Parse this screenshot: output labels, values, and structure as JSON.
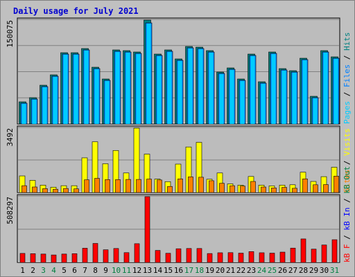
{
  "title": "Daily usage for July 2021",
  "colors": {
    "background": "#c0c0c0",
    "plot": "#bcbcbc",
    "grid": "#808080",
    "pages": "#00ccff",
    "files": "#0080ff",
    "hits": "#008080",
    "visits": "#ffff00",
    "sites": "#ff8000",
    "kb_in": "#008040",
    "kb_out": "#0000ff",
    "kb_f": "#ff0000",
    "weekend": "#008040",
    "weekday": "#000000",
    "title": "#0000d0"
  },
  "chart_data": [
    {
      "type": "bar",
      "panel": "hits-files-pages",
      "scale_label": "150075",
      "ylim": [
        0,
        150075
      ],
      "grid": true,
      "legend": {
        "position": "right",
        "items": [
          {
            "text": "Pages",
            "color": "#00ccff"
          },
          {
            "text": "Files",
            "color": "#0080ff"
          },
          {
            "text": "Hits",
            "color": "#008080"
          }
        ],
        "separators": "/"
      },
      "categories": [
        1,
        2,
        3,
        4,
        5,
        6,
        7,
        8,
        9,
        10,
        11,
        12,
        13,
        14,
        15,
        16,
        17,
        18,
        19,
        20,
        21,
        22,
        23,
        24,
        25,
        26,
        27,
        28,
        29,
        30,
        31
      ],
      "series": [
        {
          "name": "Hits",
          "values": [
            32000,
            38000,
            56000,
            71000,
            103000,
            103000,
            109000,
            82000,
            65000,
            107000,
            106000,
            104000,
            150075,
            101000,
            107000,
            94000,
            112000,
            111000,
            106000,
            75000,
            81000,
            65000,
            101000,
            61000,
            104000,
            80000,
            77000,
            95000,
            40000,
            106000,
            97000
          ]
        },
        {
          "name": "Files",
          "values": [
            30000,
            36000,
            54000,
            69000,
            101000,
            101000,
            107000,
            80000,
            63000,
            105000,
            104000,
            102000,
            146000,
            99000,
            105000,
            92000,
            110000,
            109000,
            104000,
            73000,
            79000,
            63000,
            99000,
            59000,
            102000,
            78000,
            75000,
            93000,
            38000,
            104000,
            95000
          ]
        }
      ]
    },
    {
      "type": "bar",
      "panel": "visits-sites",
      "scale_label": "3492",
      "ylim": [
        0,
        3492
      ],
      "grid": true,
      "legend": {
        "position": "right",
        "items": [
          {
            "text": "Sites",
            "color": "#ff8000"
          },
          {
            "text": "Visits",
            "color": "#ffff00"
          }
        ],
        "separators": "/"
      },
      "categories": [
        1,
        2,
        3,
        4,
        5,
        6,
        7,
        8,
        9,
        10,
        11,
        12,
        13,
        14,
        15,
        16,
        17,
        18,
        19,
        20,
        21,
        22,
        23,
        24,
        25,
        26,
        27,
        28,
        29,
        30,
        31
      ],
      "series": [
        {
          "name": "Visits",
          "values": [
            900,
            660,
            400,
            290,
            370,
            370,
            1880,
            2750,
            1560,
            2280,
            1060,
            3492,
            2080,
            730,
            590,
            1540,
            2470,
            2720,
            720,
            1060,
            470,
            400,
            870,
            400,
            360,
            400,
            420,
            1100,
            600,
            860,
            1370
          ]
        },
        {
          "name": "Sites",
          "values": [
            370,
            300,
            210,
            180,
            220,
            200,
            690,
            770,
            700,
            700,
            710,
            710,
            730,
            680,
            330,
            740,
            850,
            830,
            640,
            500,
            370,
            350,
            600,
            300,
            250,
            280,
            230,
            740,
            420,
            430,
            890
          ]
        }
      ]
    },
    {
      "type": "bar",
      "panel": "kbytes",
      "scale_label": "508297",
      "ylim": [
        0,
        508297
      ],
      "grid": true,
      "legend": {
        "position": "right",
        "items": [
          {
            "text": "kB F",
            "color": "#ff0000"
          },
          {
            "text": "kB In",
            "color": "#0000ff"
          },
          {
            "text": "kB Out",
            "color": "#008040"
          }
        ],
        "separators": "/"
      },
      "categories": [
        1,
        2,
        3,
        4,
        5,
        6,
        7,
        8,
        9,
        10,
        11,
        12,
        13,
        14,
        15,
        16,
        17,
        18,
        19,
        20,
        21,
        22,
        23,
        24,
        25,
        26,
        27,
        28,
        29,
        30,
        31
      ],
      "series": [
        {
          "name": "kB F",
          "values": [
            70000,
            68000,
            65000,
            58000,
            65000,
            68000,
            110000,
            147000,
            98000,
            108000,
            76000,
            145000,
            508297,
            93000,
            71000,
            106000,
            108000,
            108000,
            69000,
            75000,
            76000,
            72000,
            84000,
            75000,
            72000,
            80000,
            111000,
            182000,
            103000,
            135000,
            176000
          ]
        }
      ]
    }
  ],
  "x_labels": [
    {
      "text": "1",
      "weekend": false
    },
    {
      "text": "2",
      "weekend": false
    },
    {
      "text": "3",
      "weekend": true
    },
    {
      "text": "4",
      "weekend": true
    },
    {
      "text": "5",
      "weekend": false
    },
    {
      "text": "6",
      "weekend": false
    },
    {
      "text": "7",
      "weekend": false
    },
    {
      "text": "8",
      "weekend": false
    },
    {
      "text": "9",
      "weekend": false
    },
    {
      "text": "10",
      "weekend": true
    },
    {
      "text": "11",
      "weekend": true
    },
    {
      "text": "12",
      "weekend": false
    },
    {
      "text": "13",
      "weekend": false
    },
    {
      "text": "14",
      "weekend": false
    },
    {
      "text": "15",
      "weekend": false
    },
    {
      "text": "16",
      "weekend": false
    },
    {
      "text": "17",
      "weekend": true
    },
    {
      "text": "18",
      "weekend": true
    },
    {
      "text": "19",
      "weekend": false
    },
    {
      "text": "20",
      "weekend": false
    },
    {
      "text": "21",
      "weekend": false
    },
    {
      "text": "22",
      "weekend": false
    },
    {
      "text": "23",
      "weekend": false
    },
    {
      "text": "24",
      "weekend": true
    },
    {
      "text": "25",
      "weekend": true
    },
    {
      "text": "26",
      "weekend": false
    },
    {
      "text": "27",
      "weekend": false
    },
    {
      "text": "28",
      "weekend": false
    },
    {
      "text": "29",
      "weekend": false
    },
    {
      "text": "30",
      "weekend": false
    },
    {
      "text": "31",
      "weekend": true
    }
  ]
}
